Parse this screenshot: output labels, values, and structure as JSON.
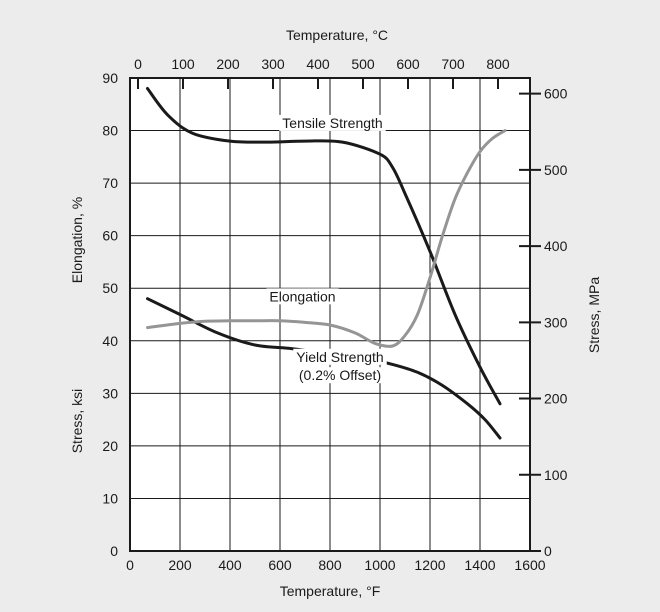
{
  "chart_data": {
    "type": "line",
    "xlabel": "Temperature, °F",
    "x2label": "Temperature, °C",
    "ylabel": "Stress, ksi",
    "ylabel_upper": "Elongation, %",
    "y2label": "Stress, MPa",
    "xlim": [
      0,
      1600
    ],
    "x2lim": [
      -17.8,
      871.1
    ],
    "ylim": [
      0,
      90
    ],
    "y2lim": [
      0,
      620.5
    ],
    "xticks": [
      "0",
      "200",
      "400",
      "600",
      "800",
      "1000",
      "1200",
      "1400",
      "1600"
    ],
    "yticks": [
      "0",
      "10",
      "20",
      "30",
      "40",
      "50",
      "60",
      "70",
      "80",
      "90"
    ],
    "x2ticks": [
      "0",
      "100",
      "200",
      "300",
      "400",
      "500",
      "600",
      "700",
      "800"
    ],
    "y2ticks": [
      "0",
      "100",
      "200",
      "300",
      "400",
      "500",
      "600"
    ],
    "grid": true,
    "series": [
      {
        "name": "Tensile Strength",
        "color": "#1a1a1a",
        "x": [
          70,
          150,
          250,
          400,
          550,
          700,
          850,
          1000,
          1050,
          1100,
          1200,
          1300,
          1400,
          1480
        ],
        "y": [
          88,
          83,
          79.5,
          78,
          77.8,
          78,
          77.8,
          75.5,
          73,
          68,
          57,
          45,
          35,
          28
        ]
      },
      {
        "name": "Yield Strength\n(0.2% Offset)",
        "color": "#1a1a1a",
        "x": [
          70,
          200,
          350,
          500,
          650,
          800,
          950,
          1050,
          1150,
          1250,
          1350,
          1420,
          1480
        ],
        "y": [
          48,
          45,
          41.5,
          39.2,
          38.5,
          37.5,
          36.5,
          35.5,
          34,
          31.5,
          28,
          25,
          21.5
        ]
      },
      {
        "name": "Elongation",
        "color": "#959595",
        "x": [
          70,
          200,
          300,
          400,
          500,
          600,
          700,
          800,
          900,
          980,
          1050,
          1100,
          1150,
          1200,
          1250,
          1300,
          1350,
          1400,
          1450,
          1500
        ],
        "y": [
          42.5,
          43.3,
          43.7,
          43.8,
          43.8,
          43.8,
          43.5,
          43,
          41.5,
          39.5,
          39,
          41,
          45,
          52,
          60,
          67,
          72,
          76,
          78.5,
          80
        ]
      }
    ],
    "annotations": [
      {
        "text": "Tensile Strength",
        "x": 810,
        "y": 80.5
      },
      {
        "text": "Elongation",
        "x": 690,
        "y": 47.5
      },
      {
        "text": "Yield Strength",
        "x": 840,
        "y": 36
      },
      {
        "text": "(0.2% Offset)",
        "x": 840,
        "y": 32.5
      }
    ]
  }
}
